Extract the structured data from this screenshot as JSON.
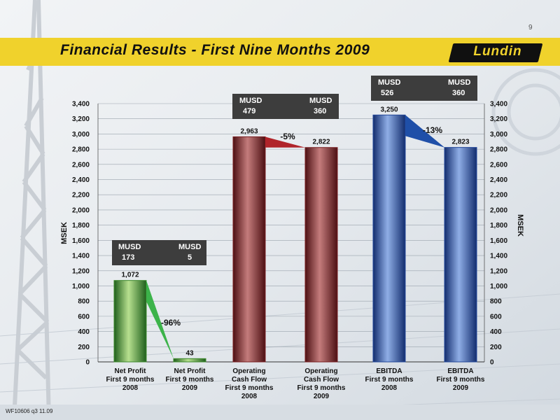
{
  "page_number": "9",
  "title": "Financial Results -  First Nine Months 2009",
  "logo_text": "Lundin",
  "footer": "WF10606 q3 11.09",
  "colors": {
    "title_band": "#f0d22c",
    "net_profit_bars": "#3f8a2e",
    "cash_flow_bars": "#7a1f22",
    "ebitda_bars": "#23489a",
    "musd_box": "#3d3d3d"
  },
  "chart_data": {
    "type": "bar",
    "ylabel": "MSEK",
    "ylabel_right": "MSEK",
    "ylim": [
      0,
      3400
    ],
    "y_ticks": [
      "0",
      "200",
      "400",
      "600",
      "800",
      "1,000",
      "1,200",
      "1,400",
      "1,600",
      "1,800",
      "2,000",
      "2,200",
      "2,400",
      "2,600",
      "2,800",
      "3,000",
      "3,200",
      "3,400"
    ],
    "grid": true,
    "categories": [
      [
        "Net Profit",
        "First 9 months",
        "2008"
      ],
      [
        "Net Profit",
        "First 9 months",
        "2009"
      ],
      [
        "Operating",
        "Cash Flow",
        "First 9 months",
        "2008"
      ],
      [
        "Operating",
        "Cash Flow",
        "First 9 months",
        "2009"
      ],
      [
        "EBITDA",
        "First 9 months",
        "2008"
      ],
      [
        "EBITDA",
        "First 9 months",
        "2009"
      ]
    ],
    "values": [
      1072,
      43,
      2963,
      2822,
      3250,
      2823
    ],
    "value_labels": [
      "1,072",
      "43",
      "2,963",
      "2,822",
      "3,250",
      "2,823"
    ],
    "change_labels": [
      "-96%",
      "-5%",
      "-13%"
    ],
    "musd_boxes": [
      {
        "header_left": "MUSD",
        "header_right": "MUSD",
        "value_left": "173",
        "value_right": "5"
      },
      {
        "header_left": "MUSD",
        "header_right": "MUSD",
        "value_left": "479",
        "value_right": "360"
      },
      {
        "header_left": "MUSD",
        "header_right": "MUSD",
        "value_left": "526",
        "value_right": "360"
      }
    ]
  }
}
